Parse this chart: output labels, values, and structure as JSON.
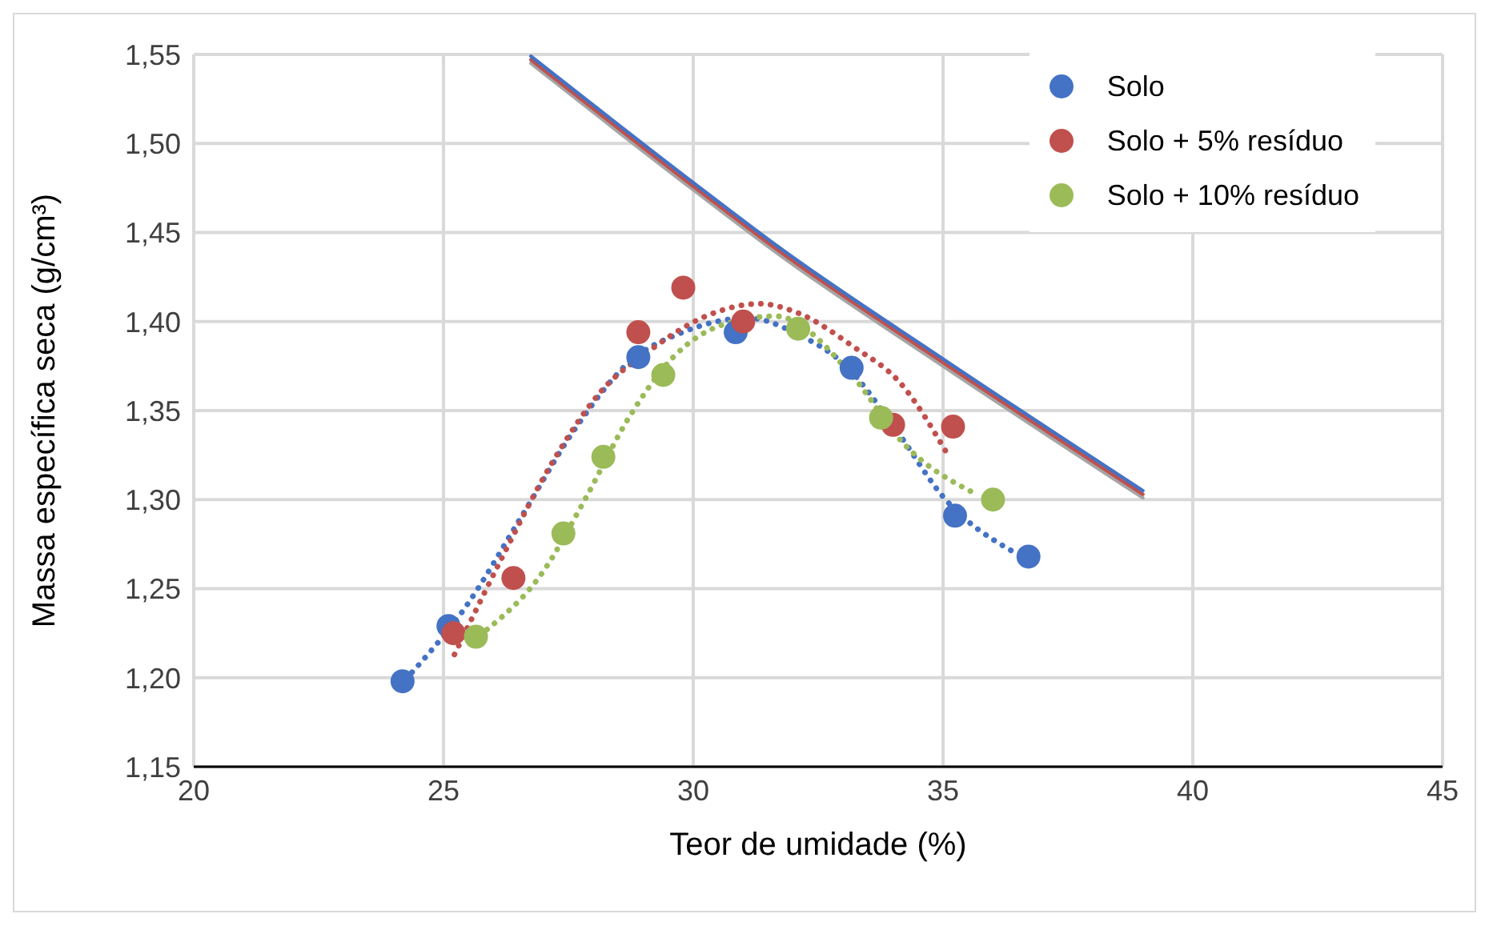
{
  "chart_data": {
    "type": "scatter",
    "xlabel": "Teor de umidade (%)",
    "ylabel": "Massa específica seca (g/cm³)",
    "xlim": [
      20,
      45
    ],
    "xticks": [
      20,
      25,
      30,
      35,
      40,
      45
    ],
    "ylim": [
      1.15,
      1.55
    ],
    "yticks": [
      {
        "value": 1.15,
        "label": "1,15"
      },
      {
        "value": 1.2,
        "label": "1,20"
      },
      {
        "value": 1.25,
        "label": "1,25"
      },
      {
        "value": 1.3,
        "label": "1,30"
      },
      {
        "value": 1.35,
        "label": "1,35"
      },
      {
        "value": 1.4,
        "label": "1,40"
      },
      {
        "value": 1.45,
        "label": "1,45"
      },
      {
        "value": 1.5,
        "label": "1,50"
      },
      {
        "value": 1.55,
        "label": "1,55"
      }
    ],
    "grid": true,
    "legend": "top right",
    "marker": "circle",
    "series": [
      {
        "type": "line",
        "color": "#a5a5a5",
        "line_style": "solid",
        "marker": "none",
        "x": [
          26.75,
          30,
          31.7,
          35,
          39
        ],
        "values": [
          1.545,
          1.474,
          1.438,
          1.375,
          1.301
        ]
      },
      {
        "type": "line",
        "color": "#c0504d",
        "line_style": "solid",
        "marker": "none",
        "x": [
          26.75,
          30,
          31.7,
          35,
          39
        ],
        "values": [
          1.547,
          1.476,
          1.44,
          1.377,
          1.303
        ]
      },
      {
        "type": "line",
        "color": "#4472c4",
        "line_style": "solid",
        "marker": "none",
        "x": [
          26.75,
          30,
          31.7,
          35,
          39
        ],
        "values": [
          1.549,
          1.478,
          1.442,
          1.379,
          1.305
        ]
      },
      {
        "type": "line",
        "color": "#4472c4",
        "line_style": "dotted",
        "marker": "none",
        "x": [
          24.37,
          25.45,
          26.53,
          27.64,
          28.71,
          29.79,
          31.1,
          32.08,
          33.06,
          34.04,
          35.02,
          36.45
        ],
        "values": [
          1.203,
          1.24,
          1.289,
          1.34,
          1.377,
          1.394,
          1.402,
          1.393,
          1.375,
          1.34,
          1.301,
          1.27
        ]
      },
      {
        "type": "line",
        "color": "#c0504d",
        "line_style": "dotted",
        "marker": "none",
        "x": [
          25.22,
          26.2,
          27.18,
          28.16,
          29.14,
          30.25,
          31.33,
          32.08,
          33.2,
          34.16,
          35.1
        ],
        "values": [
          1.213,
          1.269,
          1.321,
          1.361,
          1.384,
          1.403,
          1.41,
          1.405,
          1.386,
          1.365,
          1.325
        ]
      },
      {
        "type": "line",
        "color": "#9bbb59",
        "line_style": "dotted",
        "marker": "none",
        "x": [
          25.87,
          26.98,
          27.83,
          28.71,
          29.6,
          30.57,
          31.65,
          33.2,
          34.16,
          35.67
        ],
        "values": [
          1.227,
          1.259,
          1.3,
          1.346,
          1.38,
          1.398,
          1.403,
          1.369,
          1.333,
          1.303
        ]
      },
      {
        "name": "Solo",
        "color": "#4472c4",
        "x": [
          24.18,
          25.1,
          28.9,
          30.85,
          33.17,
          35.24,
          36.71
        ],
        "values": [
          1.198,
          1.229,
          1.38,
          1.394,
          1.374,
          1.291,
          1.268
        ]
      },
      {
        "name": "Solo + 5% resíduo",
        "color": "#c0504d",
        "x": [
          25.2,
          26.4,
          28.9,
          29.8,
          31.0,
          34.0,
          35.2
        ],
        "values": [
          1.225,
          1.256,
          1.394,
          1.419,
          1.4,
          1.342,
          1.341
        ]
      },
      {
        "name": "Solo + 10% resíduo",
        "color": "#9bbb59",
        "x": [
          25.65,
          27.4,
          28.2,
          29.4,
          32.1,
          33.76,
          36.0
        ],
        "values": [
          1.223,
          1.281,
          1.324,
          1.37,
          1.396,
          1.346,
          1.3
        ]
      }
    ]
  }
}
